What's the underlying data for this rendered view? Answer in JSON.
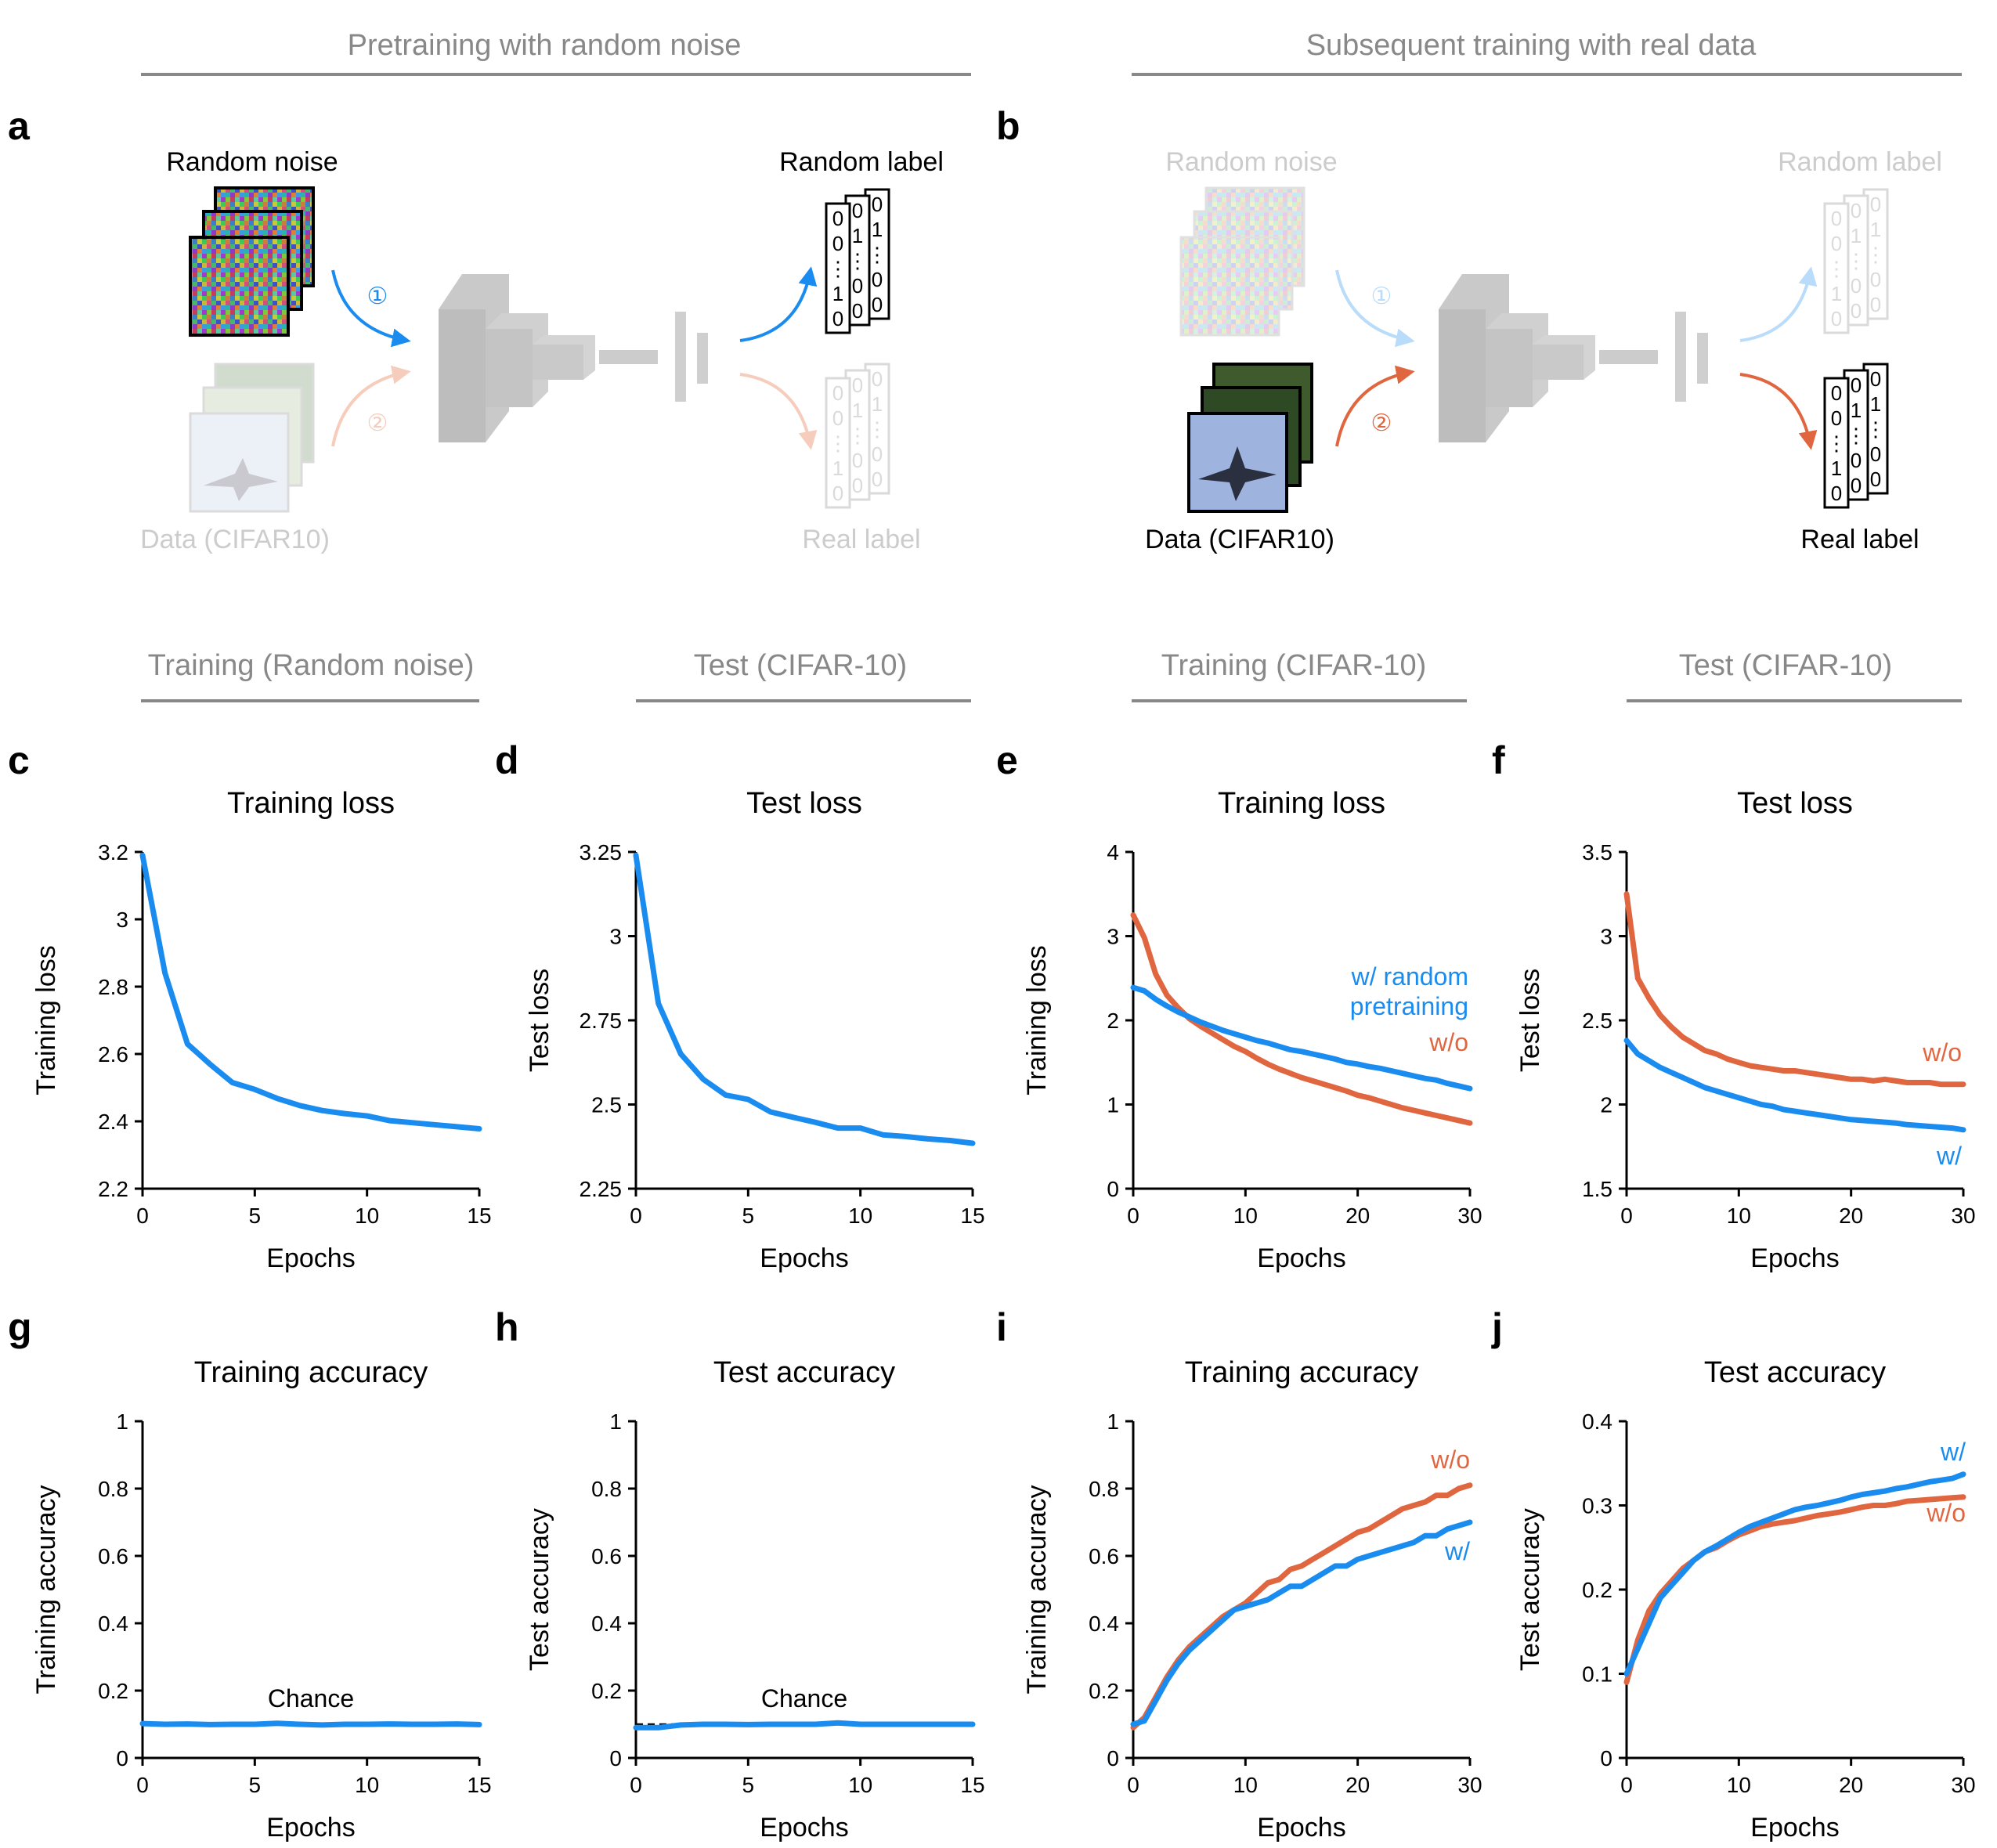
{
  "colors": {
    "blue": "#1a8cf0",
    "orange": "#e06640",
    "section_gray": "#888888",
    "faint": "#cccccc",
    "faint_blue": "#b9dcfa",
    "faint_orange": "#f6cdbd"
  },
  "sections": {
    "pretraining": "Pretraining with random noise",
    "subsequent": "Subsequent training with real data",
    "sub": [
      "Training (Random noise)",
      "Test (CIFAR-10)",
      "Training (CIFAR-10)",
      "Test (CIFAR-10)"
    ]
  },
  "panel_letters": [
    "a",
    "b",
    "c",
    "d",
    "e",
    "f",
    "g",
    "h",
    "i",
    "j"
  ],
  "diagram": {
    "random_noise": "Random noise",
    "random_label": "Random label",
    "data": "Data (CIFAR10)",
    "real_label": "Real label",
    "step1": "①",
    "step2": "②",
    "label_vectors": [
      [
        "0",
        "0",
        "⋮",
        "1",
        "0"
      ],
      [
        "0",
        "1",
        "⋮",
        "0",
        "0"
      ],
      [
        "0",
        "1",
        "⋮",
        "0",
        "0"
      ]
    ]
  },
  "chart_data": [
    {
      "id": "c",
      "type": "line",
      "title": "Training loss",
      "xlabel": "Epochs",
      "ylabel": "Training loss",
      "xlim": [
        0,
        15
      ],
      "ylim": [
        2.2,
        3.2
      ],
      "xticks": [
        0,
        5,
        10,
        15
      ],
      "xtick_labels": [
        "0",
        "5",
        "10",
        "15"
      ],
      "yticks": [
        2.2,
        2.4,
        2.6,
        2.8,
        3.0,
        3.2
      ],
      "ytick_labels": [
        "2.2",
        "2.4",
        "2.6",
        "2.8",
        "3",
        "3.2"
      ],
      "x": [
        0,
        1,
        2,
        3,
        4,
        5,
        6,
        7,
        8,
        9,
        10,
        11,
        12,
        13,
        14,
        15
      ],
      "series": [
        {
          "name": "w/ random pretraining",
          "color": "blue",
          "values": [
            3.19,
            2.84,
            2.63,
            2.57,
            2.515,
            2.495,
            2.468,
            2.447,
            2.432,
            2.423,
            2.416,
            2.402,
            2.396,
            2.39,
            2.384,
            2.378
          ]
        }
      ]
    },
    {
      "id": "d",
      "type": "line",
      "title": "Test loss",
      "xlabel": "Epochs",
      "ylabel": "Test loss",
      "xlim": [
        0,
        15
      ],
      "ylim": [
        2.25,
        3.25
      ],
      "xticks": [
        0,
        5,
        10,
        15
      ],
      "xtick_labels": [
        "0",
        "5",
        "10",
        "15"
      ],
      "yticks": [
        2.25,
        2.5,
        2.75,
        3.0,
        3.25
      ],
      "ytick_labels": [
        "2.25",
        "2.5",
        "2.75",
        "3",
        "3.25"
      ],
      "x": [
        0,
        1,
        2,
        3,
        4,
        5,
        6,
        7,
        8,
        9,
        10,
        11,
        12,
        13,
        14,
        15
      ],
      "series": [
        {
          "name": "w/ random pretraining",
          "color": "blue",
          "values": [
            3.24,
            2.8,
            2.65,
            2.575,
            2.528,
            2.515,
            2.478,
            2.462,
            2.447,
            2.43,
            2.43,
            2.41,
            2.405,
            2.398,
            2.393,
            2.385
          ]
        }
      ]
    },
    {
      "id": "e",
      "type": "line",
      "title": "Training loss",
      "xlabel": "Epochs",
      "ylabel": "Training loss",
      "xlim": [
        0,
        30
      ],
      "ylim": [
        0,
        4
      ],
      "xticks": [
        0,
        10,
        20,
        30
      ],
      "xtick_labels": [
        "0",
        "10",
        "20",
        "30"
      ],
      "yticks": [
        0,
        1,
        2,
        3,
        4
      ],
      "ytick_labels": [
        "0",
        "1",
        "2",
        "3",
        "4"
      ],
      "x": [
        0,
        1,
        2,
        3,
        4,
        5,
        6,
        7,
        8,
        9,
        10,
        11,
        12,
        13,
        14,
        15,
        16,
        17,
        18,
        19,
        20,
        21,
        22,
        23,
        24,
        25,
        26,
        27,
        28,
        29,
        30
      ],
      "series": [
        {
          "name": "w/o",
          "color": "orange",
          "values": [
            3.25,
            2.98,
            2.55,
            2.3,
            2.15,
            2.02,
            1.93,
            1.85,
            1.77,
            1.69,
            1.63,
            1.55,
            1.48,
            1.42,
            1.37,
            1.32,
            1.28,
            1.24,
            1.2,
            1.16,
            1.11,
            1.08,
            1.04,
            1.0,
            0.96,
            0.93,
            0.9,
            0.87,
            0.84,
            0.81,
            0.78
          ]
        },
        {
          "name": "w/ random pretraining",
          "color": "blue",
          "values": [
            2.39,
            2.35,
            2.25,
            2.17,
            2.1,
            2.04,
            1.98,
            1.93,
            1.88,
            1.84,
            1.8,
            1.76,
            1.73,
            1.69,
            1.65,
            1.63,
            1.6,
            1.57,
            1.54,
            1.5,
            1.48,
            1.45,
            1.43,
            1.4,
            1.37,
            1.34,
            1.31,
            1.29,
            1.25,
            1.22,
            1.19
          ]
        }
      ],
      "annotations": [
        {
          "text": "w/ random",
          "color": "blue"
        },
        {
          "text": "pretraining",
          "color": "blue"
        },
        {
          "text": "w/o",
          "color": "orange"
        }
      ]
    },
    {
      "id": "f",
      "type": "line",
      "title": "Test loss",
      "xlabel": "Epochs",
      "ylabel": "Test loss",
      "xlim": [
        0,
        30
      ],
      "ylim": [
        1.5,
        3.5
      ],
      "xticks": [
        0,
        10,
        20,
        30
      ],
      "xtick_labels": [
        "0",
        "10",
        "20",
        "30"
      ],
      "yticks": [
        1.5,
        2.0,
        2.5,
        3.0,
        3.5
      ],
      "ytick_labels": [
        "1.5",
        "2",
        "2.5",
        "3",
        "3.5"
      ],
      "x": [
        0,
        1,
        2,
        3,
        4,
        5,
        6,
        7,
        8,
        9,
        10,
        11,
        12,
        13,
        14,
        15,
        16,
        17,
        18,
        19,
        20,
        21,
        22,
        23,
        24,
        25,
        26,
        27,
        28,
        29,
        30
      ],
      "series": [
        {
          "name": "w/o",
          "color": "orange",
          "values": [
            3.25,
            2.75,
            2.63,
            2.53,
            2.46,
            2.4,
            2.36,
            2.32,
            2.3,
            2.27,
            2.25,
            2.23,
            2.22,
            2.21,
            2.2,
            2.2,
            2.19,
            2.18,
            2.17,
            2.16,
            2.15,
            2.15,
            2.14,
            2.15,
            2.14,
            2.13,
            2.13,
            2.13,
            2.12,
            2.12,
            2.12
          ]
        },
        {
          "name": "w/",
          "color": "blue",
          "values": [
            2.38,
            2.3,
            2.26,
            2.22,
            2.19,
            2.16,
            2.13,
            2.1,
            2.08,
            2.06,
            2.04,
            2.02,
            2.0,
            1.99,
            1.97,
            1.96,
            1.95,
            1.94,
            1.93,
            1.92,
            1.91,
            1.905,
            1.9,
            1.895,
            1.89,
            1.88,
            1.875,
            1.87,
            1.865,
            1.86,
            1.85
          ]
        }
      ],
      "annotations": [
        {
          "text": "w/o",
          "color": "orange"
        },
        {
          "text": "w/",
          "color": "blue"
        }
      ]
    },
    {
      "id": "g",
      "type": "line",
      "title": "Training accuracy",
      "xlabel": "Epochs",
      "ylabel": "Training accuracy",
      "xlim": [
        0,
        15
      ],
      "ylim": [
        0,
        1
      ],
      "xticks": [
        0,
        5,
        10,
        15
      ],
      "xtick_labels": [
        "0",
        "5",
        "10",
        "15"
      ],
      "yticks": [
        0,
        0.2,
        0.4,
        0.6,
        0.8,
        1.0
      ],
      "ytick_labels": [
        "0",
        "0.2",
        "0.4",
        "0.6",
        "0.8",
        "1"
      ],
      "x": [
        0,
        1,
        2,
        3,
        4,
        5,
        6,
        7,
        8,
        9,
        10,
        11,
        12,
        13,
        14,
        15
      ],
      "series": [
        {
          "name": "w/ random pretraining",
          "color": "blue",
          "values": [
            0.102,
            0.1,
            0.101,
            0.099,
            0.1,
            0.1,
            0.103,
            0.1,
            0.098,
            0.1,
            0.1,
            0.101,
            0.1,
            0.1,
            0.101,
            0.099
          ]
        }
      ],
      "reference_line": {
        "y": 0.1,
        "label": "Chance"
      }
    },
    {
      "id": "h",
      "type": "line",
      "title": "Test accuracy",
      "xlabel": "Epochs",
      "ylabel": "Test accuracy",
      "xlim": [
        0,
        15
      ],
      "ylim": [
        0,
        1
      ],
      "xticks": [
        0,
        5,
        10,
        15
      ],
      "xtick_labels": [
        "0",
        "5",
        "10",
        "15"
      ],
      "yticks": [
        0,
        0.2,
        0.4,
        0.6,
        0.8,
        1.0
      ],
      "ytick_labels": [
        "0",
        "0.2",
        "0.4",
        "0.6",
        "0.8",
        "1"
      ],
      "x": [
        0,
        1,
        2,
        3,
        4,
        5,
        6,
        7,
        8,
        9,
        10,
        11,
        12,
        13,
        14,
        15
      ],
      "series": [
        {
          "name": "w/ random pretraining",
          "color": "blue",
          "values": [
            0.09,
            0.09,
            0.098,
            0.1,
            0.1,
            0.099,
            0.1,
            0.1,
            0.1,
            0.104,
            0.1,
            0.1,
            0.1,
            0.1,
            0.1,
            0.1
          ]
        }
      ],
      "reference_line": {
        "y": 0.1,
        "label": "Chance"
      }
    },
    {
      "id": "i",
      "type": "line",
      "title": "Training accuracy",
      "xlabel": "Epochs",
      "ylabel": "Training accuracy",
      "xlim": [
        0,
        30
      ],
      "ylim": [
        0,
        1
      ],
      "xticks": [
        0,
        10,
        20,
        30
      ],
      "xtick_labels": [
        "0",
        "10",
        "20",
        "30"
      ],
      "yticks": [
        0,
        0.2,
        0.4,
        0.6,
        0.8,
        1.0
      ],
      "ytick_labels": [
        "0",
        "0.2",
        "0.4",
        "0.6",
        "0.8",
        "1"
      ],
      "x": [
        0,
        1,
        2,
        3,
        4,
        5,
        6,
        7,
        8,
        9,
        10,
        11,
        12,
        13,
        14,
        15,
        16,
        17,
        18,
        19,
        20,
        21,
        22,
        23,
        24,
        25,
        26,
        27,
        28,
        29,
        30
      ],
      "series": [
        {
          "name": "w/o",
          "color": "orange",
          "values": [
            0.09,
            0.12,
            0.18,
            0.24,
            0.29,
            0.33,
            0.36,
            0.39,
            0.42,
            0.44,
            0.46,
            0.49,
            0.52,
            0.53,
            0.56,
            0.57,
            0.59,
            0.61,
            0.63,
            0.65,
            0.67,
            0.68,
            0.7,
            0.72,
            0.74,
            0.75,
            0.76,
            0.78,
            0.78,
            0.8,
            0.81
          ]
        },
        {
          "name": "w/",
          "color": "blue",
          "values": [
            0.1,
            0.11,
            0.17,
            0.23,
            0.28,
            0.32,
            0.35,
            0.38,
            0.41,
            0.44,
            0.45,
            0.46,
            0.47,
            0.49,
            0.51,
            0.51,
            0.53,
            0.55,
            0.57,
            0.57,
            0.59,
            0.6,
            0.61,
            0.62,
            0.63,
            0.64,
            0.66,
            0.66,
            0.68,
            0.69,
            0.7
          ]
        }
      ],
      "annotations": [
        {
          "text": "w/o",
          "color": "orange"
        },
        {
          "text": "w/",
          "color": "blue"
        }
      ]
    },
    {
      "id": "j",
      "type": "line",
      "title": "Test accuracy",
      "xlabel": "Epochs",
      "ylabel": "Test accuracy",
      "xlim": [
        0,
        30
      ],
      "ylim": [
        0,
        0.4
      ],
      "xticks": [
        0,
        10,
        20,
        30
      ],
      "xtick_labels": [
        "0",
        "10",
        "20",
        "30"
      ],
      "yticks": [
        0,
        0.1,
        0.2,
        0.3,
        0.4
      ],
      "ytick_labels": [
        "0",
        "0.1",
        "0.2",
        "0.3",
        "0.4"
      ],
      "x": [
        0,
        1,
        2,
        3,
        4,
        5,
        6,
        7,
        8,
        9,
        10,
        11,
        12,
        13,
        14,
        15,
        16,
        17,
        18,
        19,
        20,
        21,
        22,
        23,
        24,
        25,
        26,
        27,
        28,
        29,
        30
      ],
      "series": [
        {
          "name": "w/o",
          "color": "orange",
          "values": [
            0.09,
            0.14,
            0.175,
            0.195,
            0.21,
            0.225,
            0.235,
            0.245,
            0.25,
            0.258,
            0.265,
            0.27,
            0.275,
            0.278,
            0.28,
            0.282,
            0.285,
            0.288,
            0.29,
            0.292,
            0.295,
            0.298,
            0.3,
            0.3,
            0.302,
            0.305,
            0.306,
            0.307,
            0.308,
            0.309,
            0.31
          ]
        },
        {
          "name": "w/",
          "color": "blue",
          "values": [
            0.1,
            0.13,
            0.16,
            0.19,
            0.205,
            0.22,
            0.235,
            0.245,
            0.252,
            0.26,
            0.268,
            0.275,
            0.28,
            0.285,
            0.29,
            0.295,
            0.298,
            0.3,
            0.303,
            0.306,
            0.31,
            0.313,
            0.315,
            0.317,
            0.32,
            0.322,
            0.325,
            0.328,
            0.33,
            0.332,
            0.337
          ]
        }
      ],
      "annotations": [
        {
          "text": "w/",
          "color": "blue"
        },
        {
          "text": "w/o",
          "color": "orange"
        }
      ]
    }
  ]
}
